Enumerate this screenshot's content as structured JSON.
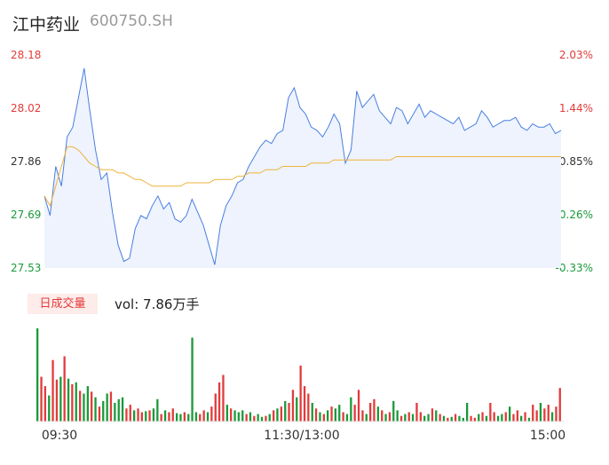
{
  "header": {
    "name": "江中药业",
    "code": "600750.SH"
  },
  "volume": {
    "badge": "日成交量",
    "text": "vol: 7.86万手"
  },
  "colors": {
    "up": "#e23b3b",
    "down": "#1a9a3a",
    "price_line": "#4a7fe0",
    "avg_line": "#f0b33c",
    "area_fill": "#eef3fd"
  },
  "chart_data": {
    "type": "line",
    "title": "",
    "y_left_ticks": [
      "28.18",
      "28.02",
      "27.86",
      "27.69",
      "27.53"
    ],
    "y_right_ticks": [
      "2.03%",
      "1.44%",
      "0.85%",
      "0.26%",
      "-0.33%"
    ],
    "ylim": [
      27.53,
      28.18
    ],
    "x_ticks": [
      "09:30",
      "11:30/13:00",
      "15:00"
    ],
    "series": [
      {
        "key": "price",
        "values": [
          27.75,
          27.69,
          27.84,
          27.78,
          27.93,
          27.96,
          28.05,
          28.14,
          28.01,
          27.89,
          27.8,
          27.82,
          27.7,
          27.6,
          27.55,
          27.56,
          27.65,
          27.69,
          27.68,
          27.72,
          27.75,
          27.71,
          27.73,
          27.68,
          27.67,
          27.69,
          27.74,
          27.7,
          27.66,
          27.6,
          27.54,
          27.66,
          27.72,
          27.75,
          27.79,
          27.8,
          27.84,
          27.87,
          27.9,
          27.92,
          27.91,
          27.94,
          27.95,
          28.05,
          28.08,
          28.02,
          28.0,
          27.96,
          27.95,
          27.93,
          27.96,
          28.0,
          27.97,
          27.85,
          27.89,
          28.07,
          28.02,
          28.04,
          28.06,
          28.01,
          27.99,
          27.97,
          28.02,
          28.01,
          27.97,
          28.0,
          28.03,
          27.99,
          28.01,
          28.0,
          27.99,
          27.98,
          27.97,
          27.99,
          27.95,
          27.96,
          27.97,
          28.01,
          27.99,
          27.96,
          27.97,
          27.98,
          27.98,
          27.99,
          27.96,
          27.95,
          27.97,
          27.96,
          27.96,
          27.97,
          27.94,
          27.95
        ],
        "name": ""
      },
      {
        "key": "avg",
        "values": [
          27.75,
          27.72,
          27.78,
          27.84,
          27.9,
          27.9,
          27.89,
          27.87,
          27.85,
          27.84,
          27.83,
          27.83,
          27.83,
          27.82,
          27.82,
          27.81,
          27.8,
          27.8,
          27.79,
          27.78,
          27.78,
          27.78,
          27.78,
          27.78,
          27.78,
          27.79,
          27.79,
          27.79,
          27.79,
          27.79,
          27.8,
          27.8,
          27.8,
          27.8,
          27.81,
          27.81,
          27.82,
          27.82,
          27.82,
          27.83,
          27.83,
          27.83,
          27.84,
          27.84,
          27.84,
          27.84,
          27.84,
          27.85,
          27.85,
          27.85,
          27.85,
          27.86,
          27.86,
          27.86,
          27.86,
          27.86,
          27.86,
          27.86,
          27.86,
          27.86,
          27.86,
          27.86,
          27.87,
          27.87,
          27.87,
          27.87,
          27.87,
          27.87,
          27.87,
          27.87,
          27.87,
          27.87,
          27.87,
          27.87,
          27.87,
          27.87,
          27.87,
          27.87,
          27.87,
          27.87,
          27.87,
          27.87,
          27.87,
          27.87,
          27.87,
          27.87,
          27.87,
          27.87,
          27.87,
          27.87,
          27.87,
          27.87
        ],
        "name": ""
      }
    ],
    "volume_bars": [
      {
        "v": 100,
        "c": "down"
      },
      {
        "v": 48,
        "c": "up"
      },
      {
        "v": 38,
        "c": "up"
      },
      {
        "v": 28,
        "c": "down"
      },
      {
        "v": 66,
        "c": "up"
      },
      {
        "v": 45,
        "c": "up"
      },
      {
        "v": 48,
        "c": "down"
      },
      {
        "v": 70,
        "c": "up"
      },
      {
        "v": 46,
        "c": "down"
      },
      {
        "v": 40,
        "c": "up"
      },
      {
        "v": 42,
        "c": "down"
      },
      {
        "v": 33,
        "c": "up"
      },
      {
        "v": 30,
        "c": "down"
      },
      {
        "v": 38,
        "c": "down"
      },
      {
        "v": 32,
        "c": "up"
      },
      {
        "v": 26,
        "c": "down"
      },
      {
        "v": 16,
        "c": "up"
      },
      {
        "v": 22,
        "c": "down"
      },
      {
        "v": 30,
        "c": "down"
      },
      {
        "v": 32,
        "c": "up"
      },
      {
        "v": 20,
        "c": "down"
      },
      {
        "v": 24,
        "c": "down"
      },
      {
        "v": 26,
        "c": "down"
      },
      {
        "v": 14,
        "c": "up"
      },
      {
        "v": 18,
        "c": "up"
      },
      {
        "v": 12,
        "c": "down"
      },
      {
        "v": 14,
        "c": "up"
      },
      {
        "v": 10,
        "c": "up"
      },
      {
        "v": 11,
        "c": "down"
      },
      {
        "v": 12,
        "c": "up"
      },
      {
        "v": 14,
        "c": "down"
      },
      {
        "v": 24,
        "c": "down"
      },
      {
        "v": 8,
        "c": "up"
      },
      {
        "v": 12,
        "c": "down"
      },
      {
        "v": 10,
        "c": "up"
      },
      {
        "v": 14,
        "c": "up"
      },
      {
        "v": 9,
        "c": "down"
      },
      {
        "v": 8,
        "c": "down"
      },
      {
        "v": 10,
        "c": "up"
      },
      {
        "v": 8,
        "c": "down"
      },
      {
        "v": 90,
        "c": "down"
      },
      {
        "v": 10,
        "c": "down"
      },
      {
        "v": 8,
        "c": "up"
      },
      {
        "v": 12,
        "c": "up"
      },
      {
        "v": 10,
        "c": "down"
      },
      {
        "v": 16,
        "c": "up"
      },
      {
        "v": 30,
        "c": "up"
      },
      {
        "v": 42,
        "c": "up"
      },
      {
        "v": 50,
        "c": "up"
      },
      {
        "v": 18,
        "c": "down"
      },
      {
        "v": 14,
        "c": "up"
      },
      {
        "v": 12,
        "c": "down"
      },
      {
        "v": 10,
        "c": "down"
      },
      {
        "v": 12,
        "c": "down"
      },
      {
        "v": 8,
        "c": "up"
      },
      {
        "v": 10,
        "c": "down"
      },
      {
        "v": 6,
        "c": "up"
      },
      {
        "v": 8,
        "c": "down"
      },
      {
        "v": 5,
        "c": "down"
      },
      {
        "v": 6,
        "c": "up"
      },
      {
        "v": 8,
        "c": "down"
      },
      {
        "v": 12,
        "c": "up"
      },
      {
        "v": 14,
        "c": "down"
      },
      {
        "v": 16,
        "c": "up"
      },
      {
        "v": 22,
        "c": "down"
      },
      {
        "v": 20,
        "c": "up"
      },
      {
        "v": 34,
        "c": "up"
      },
      {
        "v": 26,
        "c": "down"
      },
      {
        "v": 60,
        "c": "up"
      },
      {
        "v": 38,
        "c": "up"
      },
      {
        "v": 30,
        "c": "up"
      },
      {
        "v": 20,
        "c": "down"
      },
      {
        "v": 14,
        "c": "up"
      },
      {
        "v": 10,
        "c": "down"
      },
      {
        "v": 8,
        "c": "up"
      },
      {
        "v": 12,
        "c": "down"
      },
      {
        "v": 16,
        "c": "up"
      },
      {
        "v": 14,
        "c": "down"
      },
      {
        "v": 18,
        "c": "down"
      },
      {
        "v": 10,
        "c": "up"
      },
      {
        "v": 8,
        "c": "down"
      },
      {
        "v": 26,
        "c": "down"
      },
      {
        "v": 18,
        "c": "up"
      },
      {
        "v": 34,
        "c": "up"
      },
      {
        "v": 12,
        "c": "up"
      },
      {
        "v": 8,
        "c": "down"
      },
      {
        "v": 20,
        "c": "up"
      },
      {
        "v": 24,
        "c": "up"
      },
      {
        "v": 16,
        "c": "down"
      },
      {
        "v": 12,
        "c": "up"
      },
      {
        "v": 8,
        "c": "down"
      },
      {
        "v": 10,
        "c": "up"
      },
      {
        "v": 22,
        "c": "down"
      },
      {
        "v": 12,
        "c": "down"
      },
      {
        "v": 6,
        "c": "up"
      },
      {
        "v": 8,
        "c": "down"
      },
      {
        "v": 10,
        "c": "up"
      },
      {
        "v": 8,
        "c": "down"
      },
      {
        "v": 20,
        "c": "up"
      },
      {
        "v": 10,
        "c": "up"
      },
      {
        "v": 6,
        "c": "down"
      },
      {
        "v": 8,
        "c": "down"
      },
      {
        "v": 14,
        "c": "up"
      },
      {
        "v": 12,
        "c": "down"
      },
      {
        "v": 8,
        "c": "up"
      },
      {
        "v": 6,
        "c": "down"
      },
      {
        "v": 4,
        "c": "up"
      },
      {
        "v": 5,
        "c": "down"
      },
      {
        "v": 8,
        "c": "up"
      },
      {
        "v": 6,
        "c": "down"
      },
      {
        "v": 4,
        "c": "down"
      },
      {
        "v": 20,
        "c": "down"
      },
      {
        "v": 6,
        "c": "up"
      },
      {
        "v": 4,
        "c": "up"
      },
      {
        "v": 8,
        "c": "down"
      },
      {
        "v": 10,
        "c": "up"
      },
      {
        "v": 6,
        "c": "down"
      },
      {
        "v": 20,
        "c": "up"
      },
      {
        "v": 10,
        "c": "up"
      },
      {
        "v": 6,
        "c": "down"
      },
      {
        "v": 8,
        "c": "down"
      },
      {
        "v": 10,
        "c": "up"
      },
      {
        "v": 16,
        "c": "down"
      },
      {
        "v": 8,
        "c": "up"
      },
      {
        "v": 12,
        "c": "up"
      },
      {
        "v": 6,
        "c": "down"
      },
      {
        "v": 10,
        "c": "up"
      },
      {
        "v": 4,
        "c": "down"
      },
      {
        "v": 18,
        "c": "up"
      },
      {
        "v": 12,
        "c": "up"
      },
      {
        "v": 20,
        "c": "down"
      },
      {
        "v": 14,
        "c": "up"
      },
      {
        "v": 18,
        "c": "up"
      },
      {
        "v": 10,
        "c": "down"
      },
      {
        "v": 16,
        "c": "up"
      },
      {
        "v": 36,
        "c": "up"
      }
    ]
  }
}
